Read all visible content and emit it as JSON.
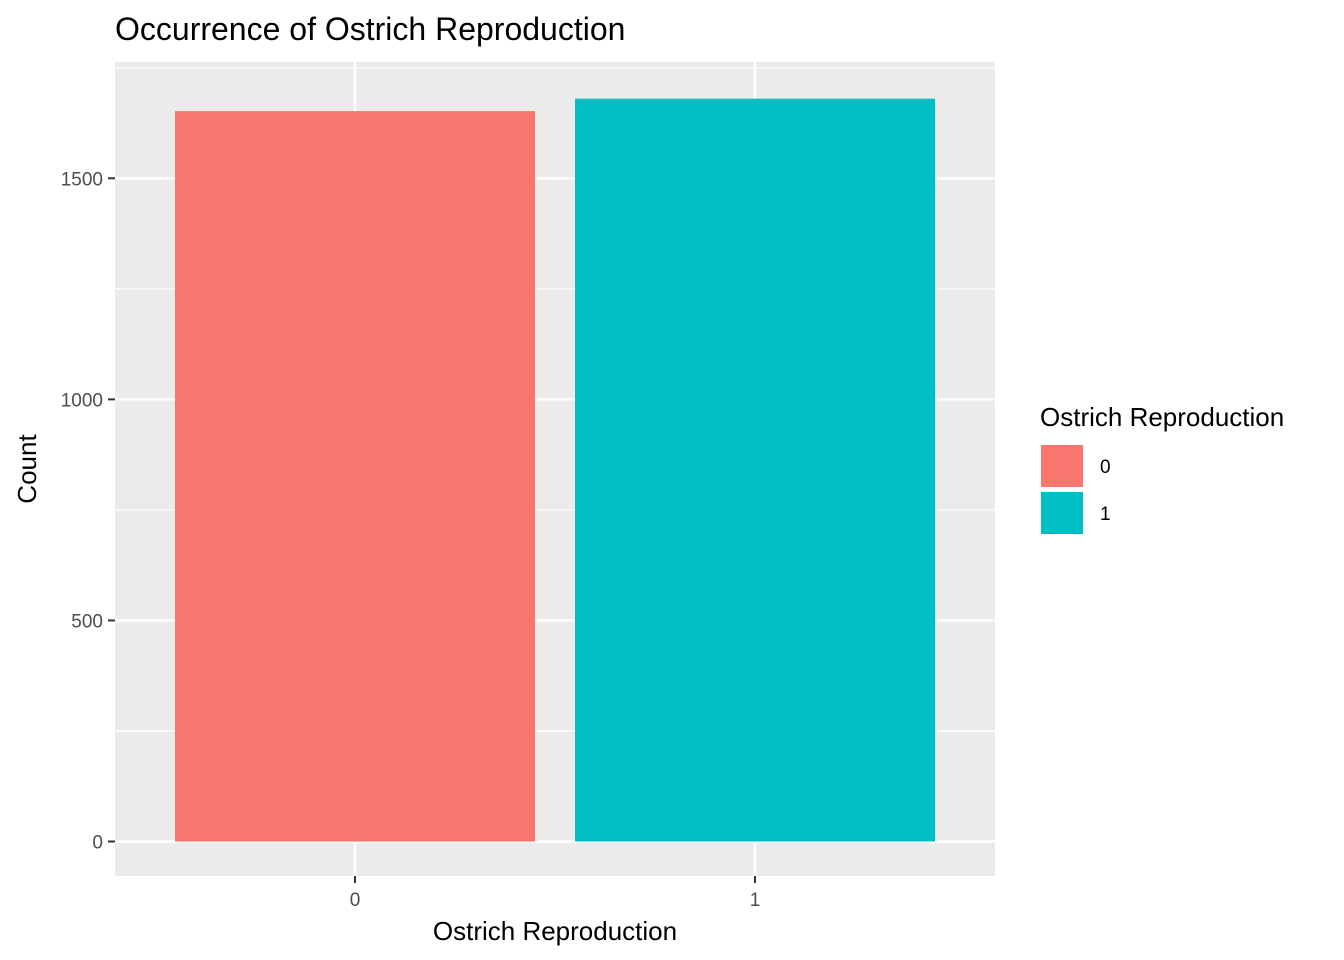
{
  "chart_data": {
    "type": "bar",
    "title": "Occurrence of Ostrich Reproduction",
    "xlabel": "Ostrich Reproduction",
    "ylabel": "Count",
    "categories": [
      "0",
      "1"
    ],
    "values": [
      1652,
      1680
    ],
    "ylim": [
      -78,
      1763
    ],
    "yticks": [
      0,
      500,
      1000,
      1500
    ],
    "ytick_labels": [
      "0",
      "500",
      "1000",
      "1500"
    ],
    "grid": true,
    "legend": {
      "title": "Ostrich Reproduction",
      "position": "right",
      "entries": [
        {
          "label": "0",
          "color": "#F8766D"
        },
        {
          "label": "1",
          "color": "#00BFC4"
        }
      ]
    },
    "colors": [
      "#F8766D",
      "#00BFC4"
    ],
    "panel_background": "#EBEBEB"
  }
}
